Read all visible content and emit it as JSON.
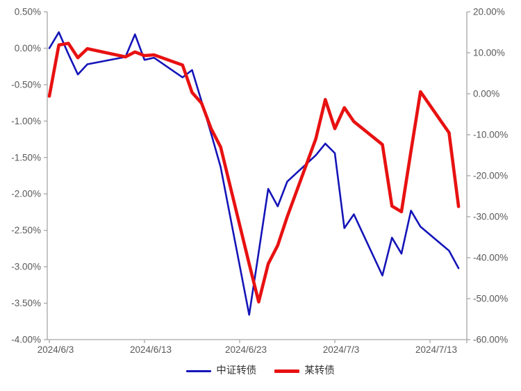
{
  "chart_data": {
    "type": "line",
    "title": "",
    "xlabel": "",
    "ylabel_left": "",
    "ylabel_right": "",
    "grid": false,
    "legend_position": "bottom",
    "x_tick_labels": [
      "2024/6/3",
      "2024/6/13",
      "2024/6/23",
      "2024/7/3",
      "2024/7/13"
    ],
    "x_tick_day_offsets": [
      0,
      10,
      20,
      30,
      40
    ],
    "dates": [
      "2024/6/3",
      "2024/6/4",
      "2024/6/5",
      "2024/6/6",
      "2024/6/7",
      "2024/6/11",
      "2024/6/12",
      "2024/6/13",
      "2024/6/14",
      "2024/6/17",
      "2024/6/18",
      "2024/6/19",
      "2024/6/20",
      "2024/6/21",
      "2024/6/24",
      "2024/6/25",
      "2024/6/26",
      "2024/6/27",
      "2024/6/28",
      "2024/7/1",
      "2024/7/2",
      "2024/7/3",
      "2024/7/4",
      "2024/7/5",
      "2024/7/8",
      "2024/7/9",
      "2024/7/10",
      "2024/7/11",
      "2024/7/12",
      "2024/7/15",
      "2024/7/16"
    ],
    "day_offsets": [
      0,
      1,
      2,
      3,
      4,
      8,
      9,
      10,
      11,
      14,
      15,
      16,
      17,
      18,
      21,
      22,
      23,
      24,
      25,
      28,
      29,
      30,
      31,
      32,
      35,
      36,
      37,
      38,
      39,
      42,
      43
    ],
    "series": [
      {
        "name": "中证转债",
        "axis": "left",
        "color": "#1414b8",
        "line_width": 2.6,
        "unit": "%",
        "values": [
          0.0,
          0.22,
          -0.08,
          -0.36,
          -0.22,
          -0.12,
          0.19,
          -0.16,
          -0.13,
          -0.4,
          -0.3,
          -0.73,
          -1.17,
          -1.63,
          -3.66,
          -2.8,
          -1.93,
          -2.17,
          -1.83,
          -1.47,
          -1.31,
          -1.44,
          -2.47,
          -2.28,
          -3.12,
          -2.6,
          -2.82,
          -2.23,
          -2.45,
          -2.78,
          -3.02
        ]
      },
      {
        "name": "某转债",
        "axis": "right",
        "color": "#e81111",
        "line_width": 4.6,
        "unit": "%",
        "values": [
          -0.6,
          11.9,
          12.3,
          8.8,
          11.0,
          9.0,
          10.2,
          9.3,
          9.5,
          7.0,
          0.3,
          -2.3,
          -8.5,
          -13.0,
          -41.5,
          -50.8,
          -41.5,
          -37.0,
          -30.0,
          -11.0,
          -1.4,
          -8.5,
          -3.4,
          -6.8,
          -12.4,
          -27.4,
          -28.8,
          -14.0,
          0.5,
          -9.5,
          -27.5
        ]
      }
    ],
    "left_axis": {
      "max": 0.5,
      "min": -4.0,
      "step": 0.5,
      "tick_labels": [
        "0.50%",
        "0.00%",
        "-0.50%",
        "-1.00%",
        "-1.50%",
        "-2.00%",
        "-2.50%",
        "-3.00%",
        "-3.50%",
        "-4.00%"
      ]
    },
    "right_axis": {
      "max": 20,
      "min": -60,
      "step": 10,
      "tick_labels": [
        "20.00%",
        "10.00%",
        "0.00%",
        "-10.00%",
        "-20.00%",
        "-30.00%",
        "-40.00%",
        "-50.00%",
        "-60.00%"
      ]
    },
    "axis_color": "#a6a6a6",
    "label_color": "#595959"
  }
}
